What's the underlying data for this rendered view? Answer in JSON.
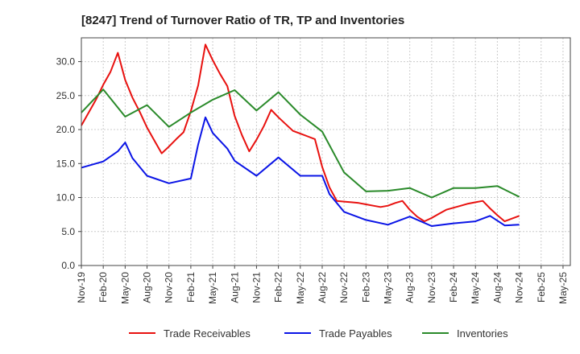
{
  "chart_data": {
    "type": "line",
    "title": "[8247]  Trend of Turnover Ratio of TR, TP and Inventories",
    "xlabel": "",
    "ylabel": "",
    "ylim": [
      0,
      33.5
    ],
    "yticks": [
      "0.0",
      "5.0",
      "10.0",
      "15.0",
      "20.0",
      "25.0",
      "30.0"
    ],
    "ytick_values": [
      0,
      5,
      10,
      15,
      20,
      25,
      30
    ],
    "x_tick_labels": [
      "Nov-19",
      "Feb-20",
      "May-20",
      "Aug-20",
      "Nov-20",
      "Feb-21",
      "May-21",
      "Aug-21",
      "Nov-21",
      "Feb-22",
      "May-22",
      "Aug-22",
      "Nov-22",
      "Feb-23",
      "May-23",
      "Aug-23",
      "Nov-23",
      "Feb-24",
      "May-24",
      "Aug-24",
      "Nov-24",
      "Feb-25",
      "May-25"
    ],
    "x_months_total": 67,
    "grid": true,
    "legend_position": "bottom",
    "series": [
      {
        "name": "Trade Receivables",
        "color": "#e8110f",
        "x": [
          0,
          1,
          2,
          3,
          4,
          5,
          6,
          7,
          8,
          9,
          10,
          11,
          12,
          13,
          14,
          15,
          16,
          17,
          18,
          19,
          20,
          21,
          22,
          23,
          24,
          25,
          26,
          27,
          28,
          29,
          30,
          31,
          32,
          33,
          34,
          35,
          36,
          37,
          38,
          39,
          40,
          41,
          42,
          43,
          44,
          45,
          46,
          47,
          48,
          49,
          50,
          51,
          52,
          53,
          54,
          55,
          56,
          57,
          58,
          59,
          60
        ],
        "values": [
          20.6,
          22.5,
          24.4,
          26.6,
          28.5,
          31.3,
          27.3,
          24.7,
          22.6,
          20.3,
          18.4,
          16.5,
          17.5,
          18.6,
          19.6,
          22.7,
          26.5,
          32.5,
          30.2,
          28.2,
          26.4,
          22.0,
          19.2,
          16.8,
          18.5,
          20.5,
          22.9,
          21.8,
          20.8,
          19.8,
          19.4,
          19.0,
          18.6,
          14.5,
          11.5,
          9.5,
          9.4,
          9.3,
          9.2,
          9.0,
          8.8,
          8.6,
          8.8,
          9.2,
          9.5,
          8.2,
          7.2,
          6.5,
          7.0,
          7.6,
          8.2,
          8.5,
          8.8,
          9.1,
          9.3,
          9.5,
          8.4,
          7.4,
          6.5,
          6.9,
          7.3
        ]
      },
      {
        "name": "Trade Payables",
        "color": "#0a14e6",
        "x": [
          0,
          3,
          5,
          6,
          7,
          9,
          12,
          15,
          16,
          17,
          18,
          20,
          21,
          24,
          27,
          30,
          33,
          34,
          36,
          39,
          42,
          45,
          48,
          51,
          54,
          56,
          58,
          60
        ],
        "values": [
          14.4,
          15.3,
          16.8,
          18.1,
          15.8,
          13.2,
          12.1,
          12.8,
          17.8,
          21.8,
          19.5,
          17.2,
          15.4,
          13.2,
          15.9,
          13.2,
          13.2,
          10.5,
          7.9,
          6.7,
          6.0,
          7.2,
          5.8,
          6.2,
          6.5,
          7.3,
          5.9,
          6.0
        ]
      },
      {
        "name": "Inventories",
        "color": "#2a8a2a",
        "x": [
          0,
          3,
          6,
          9,
          12,
          15,
          18,
          21,
          24,
          27,
          30,
          33,
          36,
          39,
          42,
          45,
          48,
          51,
          54,
          57,
          60
        ],
        "values": [
          22.5,
          25.9,
          21.9,
          23.6,
          20.4,
          22.5,
          24.4,
          25.8,
          22.8,
          25.5,
          22.2,
          19.7,
          13.7,
          10.9,
          11.0,
          11.4,
          10.0,
          11.4,
          11.4,
          11.7,
          10.1
        ]
      }
    ]
  }
}
